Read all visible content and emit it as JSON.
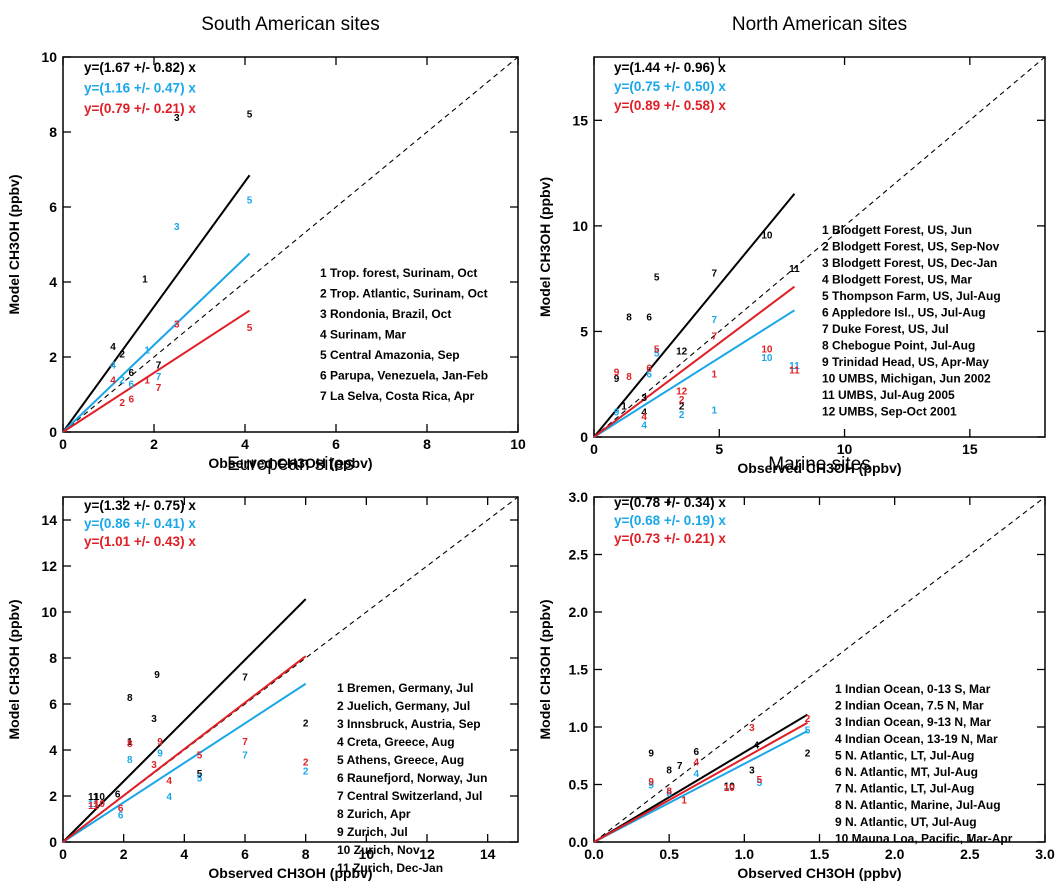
{
  "colors": {
    "black": "#000000",
    "blue": "#1aa7e8",
    "red": "#e01e25"
  },
  "chart_data": [
    {
      "type": "scatter",
      "title": "South American sites",
      "xlabel": "Observed CH3OH (ppbv)",
      "ylabel": "Model CH3OH (ppbv)",
      "xlim": [
        0,
        10
      ],
      "ylim": [
        0,
        10
      ],
      "xticks": [
        0,
        2,
        4,
        6,
        8,
        10
      ],
      "yticks": [
        0,
        2,
        4,
        6,
        8,
        10
      ],
      "tick_labels_x": [
        "0",
        "2",
        "4",
        "6",
        "8",
        "10"
      ],
      "tick_labels_y": [
        "0",
        "2",
        "4",
        "6",
        "8",
        "10"
      ],
      "one_to_one_line": true,
      "fits": [
        {
          "label": "y=(1.67 +/- 0.82) x",
          "slope": 1.67,
          "color": "black",
          "xend": 4.1
        },
        {
          "label": "y=(1.16 +/- 0.47) x",
          "slope": 1.16,
          "color": "blue",
          "xend": 4.1
        },
        {
          "label": "y=(0.79 +/- 0.21) x",
          "slope": 0.79,
          "color": "red",
          "xend": 4.1
        }
      ],
      "legend": [
        "1  Trop. forest, Surinam, Oct",
        "2  Trop. Atlantic, Surinam, Oct",
        "3  Rondonia, Brazil, Oct",
        "4  Surinam, Mar",
        "5  Central Amazonia, Sep",
        "6  Parupa, Venezuela, Jan-Feb",
        "7  La Selva, Costa Rica, Apr"
      ],
      "legend_position": "bottom-right",
      "series": [
        {
          "color": "black",
          "points": [
            {
              "x": 1.8,
              "y": 4.1,
              "label": "1"
            },
            {
              "x": 2.5,
              "y": 8.4,
              "label": "3"
            },
            {
              "x": 4.1,
              "y": 8.5,
              "label": "5"
            },
            {
              "x": 1.1,
              "y": 2.3,
              "label": "4"
            },
            {
              "x": 1.3,
              "y": 2.1,
              "label": "2"
            },
            {
              "x": 1.5,
              "y": 1.6,
              "label": "6"
            },
            {
              "x": 2.1,
              "y": 1.8,
              "label": "7"
            }
          ]
        },
        {
          "color": "blue",
          "points": [
            {
              "x": 2.5,
              "y": 5.5,
              "label": "3"
            },
            {
              "x": 4.1,
              "y": 6.2,
              "label": "5"
            },
            {
              "x": 1.85,
              "y": 2.2,
              "label": "1"
            },
            {
              "x": 1.1,
              "y": 1.8,
              "label": "4"
            },
            {
              "x": 1.3,
              "y": 1.4,
              "label": "2"
            },
            {
              "x": 1.5,
              "y": 1.3,
              "label": "6"
            },
            {
              "x": 2.1,
              "y": 1.5,
              "label": "7"
            }
          ]
        },
        {
          "color": "red",
          "points": [
            {
              "x": 2.5,
              "y": 2.9,
              "label": "3"
            },
            {
              "x": 4.1,
              "y": 2.8,
              "label": "5"
            },
            {
              "x": 1.1,
              "y": 1.4,
              "label": "4"
            },
            {
              "x": 1.3,
              "y": 0.8,
              "label": "2"
            },
            {
              "x": 1.5,
              "y": 0.9,
              "label": "6"
            },
            {
              "x": 1.85,
              "y": 1.4,
              "label": "1"
            },
            {
              "x": 2.1,
              "y": 1.2,
              "label": "7"
            }
          ]
        }
      ]
    },
    {
      "type": "scatter",
      "title": "North American sites",
      "xlabel": "Observed CH3OH (ppbv)",
      "ylabel": "Model CH3OH (ppbv)",
      "xlim": [
        0,
        18
      ],
      "ylim": [
        0,
        18
      ],
      "xticks": [
        0,
        5,
        10,
        15
      ],
      "yticks": [
        0,
        5,
        10,
        15
      ],
      "tick_labels_x": [
        "0",
        "5",
        "10",
        "15"
      ],
      "tick_labels_y": [
        "0",
        "5",
        "10",
        "15"
      ],
      "one_to_one_line": true,
      "fits": [
        {
          "label": "y=(1.44 +/- 0.96) x",
          "slope": 1.44,
          "color": "black",
          "xend": 8.0
        },
        {
          "label": "y=(0.75 +/- 0.50) x",
          "slope": 0.75,
          "color": "blue",
          "xend": 8.0
        },
        {
          "label": "y=(0.89 +/- 0.58) x",
          "slope": 0.89,
          "color": "red",
          "xend": 8.0
        }
      ],
      "legend": [
        "1  Blodgett Forest, US, Jun",
        "2  Blodgett Forest, US, Sep-Nov",
        "3  Blodgett Forest, US, Dec-Jan",
        "4  Blodgett Forest, US, Mar",
        "5  Thompson Farm, US, Jul-Aug",
        "6  Appledore Isl., US, Jul-Aug",
        "7  Duke Forest, US, Jul",
        "8  Chebogue Point, Jul-Aug",
        "9  Trinidad Head, US, Apr-May",
        "10  UMBS, Michigan, Jun 2002",
        "11  UMBS, Jul-Aug 2005",
        "12  UMBS, Sep-Oct 2001"
      ],
      "legend_position": "bottom-right",
      "series": [
        {
          "color": "black",
          "points": [
            {
              "x": 2.5,
              "y": 7.6,
              "label": "5"
            },
            {
              "x": 1.4,
              "y": 5.7,
              "label": "8"
            },
            {
              "x": 2.2,
              "y": 5.7,
              "label": "6"
            },
            {
              "x": 4.8,
              "y": 7.8,
              "label": "7"
            },
            {
              "x": 6.9,
              "y": 9.6,
              "label": "10"
            },
            {
              "x": 8.0,
              "y": 8.0,
              "label": "11"
            },
            {
              "x": 3.5,
              "y": 4.1,
              "label": "12"
            },
            {
              "x": 0.9,
              "y": 2.8,
              "label": "9"
            },
            {
              "x": 2.0,
              "y": 1.9,
              "label": "3"
            },
            {
              "x": 1.2,
              "y": 1.5,
              "label": "1"
            },
            {
              "x": 2.0,
              "y": 1.2,
              "label": "4"
            },
            {
              "x": 3.5,
              "y": 1.5,
              "label": "2"
            }
          ]
        },
        {
          "color": "blue",
          "points": [
            {
              "x": 4.8,
              "y": 5.6,
              "label": "7"
            },
            {
              "x": 2.5,
              "y": 4.0,
              "label": "5"
            },
            {
              "x": 2.2,
              "y": 3.0,
              "label": "6"
            },
            {
              "x": 6.9,
              "y": 3.8,
              "label": "10"
            },
            {
              "x": 8.0,
              "y": 3.4,
              "label": "11"
            },
            {
              "x": 0.9,
              "y": 1.2,
              "label": "9"
            },
            {
              "x": 2.0,
              "y": 0.6,
              "label": "4"
            },
            {
              "x": 3.5,
              "y": 1.1,
              "label": "2"
            },
            {
              "x": 4.8,
              "y": 1.3,
              "label": "1"
            }
          ]
        },
        {
          "color": "red",
          "points": [
            {
              "x": 2.5,
              "y": 4.2,
              "label": "5"
            },
            {
              "x": 2.2,
              "y": 3.3,
              "label": "6"
            },
            {
              "x": 4.8,
              "y": 4.8,
              "label": "7"
            },
            {
              "x": 6.9,
              "y": 4.2,
              "label": "10"
            },
            {
              "x": 8.0,
              "y": 3.2,
              "label": "11"
            },
            {
              "x": 0.9,
              "y": 3.1,
              "label": "9"
            },
            {
              "x": 1.4,
              "y": 2.9,
              "label": "8"
            },
            {
              "x": 3.5,
              "y": 2.2,
              "label": "12"
            },
            {
              "x": 3.5,
              "y": 1.8,
              "label": "2"
            },
            {
              "x": 4.8,
              "y": 3.0,
              "label": "1"
            },
            {
              "x": 2.0,
              "y": 1.0,
              "label": "4"
            }
          ]
        }
      ]
    },
    {
      "type": "scatter",
      "title": "European sites",
      "xlabel": "Observed CH3OH (ppbv)",
      "ylabel": "Model CH3OH (ppbv)",
      "xlim": [
        0,
        15
      ],
      "ylim": [
        0,
        15
      ],
      "xticks": [
        0,
        2,
        4,
        6,
        8,
        10,
        12,
        14
      ],
      "yticks": [
        0,
        2,
        4,
        6,
        8,
        10,
        12,
        14
      ],
      "tick_labels_x": [
        "0",
        "2",
        "4",
        "6",
        "8",
        "10",
        "12",
        "14"
      ],
      "tick_labels_y": [
        "0",
        "2",
        "4",
        "6",
        "8",
        "10",
        "12",
        "14"
      ],
      "one_to_one_line": true,
      "fits": [
        {
          "label": "y=(1.32 +/- 0.75) x",
          "slope": 1.32,
          "color": "black",
          "xend": 8.0
        },
        {
          "label": "y=(0.86 +/- 0.41) x",
          "slope": 0.86,
          "color": "blue",
          "xend": 8.0
        },
        {
          "label": "y=(1.01 +/- 0.43) x",
          "slope": 1.01,
          "color": "red",
          "xend": 8.0
        }
      ],
      "legend": [
        "1  Bremen, Germany, Jul",
        "2  Juelich, Germany, Jul",
        "3  Innsbruck, Austria, Sep",
        "4  Creta, Greece, Aug",
        "5  Athens, Greece, Aug",
        "6  Raunefjord, Norway, Jun",
        "7  Central Switzerland, Jul",
        "8  Zurich, Apr",
        "9  Zurich, Jul",
        "10  Zurich, Nov",
        "11  Zurich, Dec-Jan"
      ],
      "legend_position": "bottom-right",
      "series": [
        {
          "color": "black",
          "points": [
            {
              "x": 3.1,
              "y": 7.3,
              "label": "9"
            },
            {
              "x": 2.2,
              "y": 6.3,
              "label": "8"
            },
            {
              "x": 3.0,
              "y": 5.4,
              "label": "3"
            },
            {
              "x": 6.0,
              "y": 7.2,
              "label": "7"
            },
            {
              "x": 8.0,
              "y": 5.2,
              "label": "2"
            },
            {
              "x": 2.2,
              "y": 4.4,
              "label": "1"
            },
            {
              "x": 1.2,
              "y": 2.0,
              "label": "10"
            },
            {
              "x": 1.8,
              "y": 2.1,
              "label": "6"
            },
            {
              "x": 4.5,
              "y": 3.0,
              "label": "5"
            },
            {
              "x": 1.0,
              "y": 2.0,
              "label": "11"
            }
          ]
        },
        {
          "color": "blue",
          "points": [
            {
              "x": 2.2,
              "y": 3.6,
              "label": "8"
            },
            {
              "x": 3.2,
              "y": 3.9,
              "label": "9"
            },
            {
              "x": 3.5,
              "y": 2.0,
              "label": "4"
            },
            {
              "x": 4.5,
              "y": 2.8,
              "label": "5"
            },
            {
              "x": 6.0,
              "y": 3.8,
              "label": "7"
            },
            {
              "x": 8.0,
              "y": 3.1,
              "label": "2"
            },
            {
              "x": 1.9,
              "y": 1.2,
              "label": "6"
            },
            {
              "x": 1.0,
              "y": 1.7,
              "label": "11"
            }
          ]
        },
        {
          "color": "red",
          "points": [
            {
              "x": 2.2,
              "y": 4.3,
              "label": "8"
            },
            {
              "x": 3.2,
              "y": 4.4,
              "label": "9"
            },
            {
              "x": 3.0,
              "y": 3.4,
              "label": "3"
            },
            {
              "x": 3.5,
              "y": 2.7,
              "label": "4"
            },
            {
              "x": 4.5,
              "y": 3.8,
              "label": "5"
            },
            {
              "x": 6.0,
              "y": 4.4,
              "label": "7"
            },
            {
              "x": 8.0,
              "y": 3.5,
              "label": "2"
            },
            {
              "x": 1.2,
              "y": 1.7,
              "label": "10"
            },
            {
              "x": 1.9,
              "y": 1.5,
              "label": "6"
            },
            {
              "x": 1.0,
              "y": 1.6,
              "label": "11"
            }
          ]
        }
      ]
    },
    {
      "type": "scatter",
      "title": "Marine sites",
      "xlabel": "Observed CH3OH (ppbv)",
      "ylabel": "Model CH3OH (ppbv)",
      "xlim": [
        0,
        3
      ],
      "ylim": [
        0,
        3
      ],
      "xticks": [
        0,
        0.5,
        1,
        1.5,
        2,
        2.5,
        3
      ],
      "yticks": [
        0,
        0.5,
        1,
        1.5,
        2,
        2.5,
        3
      ],
      "tick_labels_x": [
        "0.0",
        "0.5",
        "1.0",
        "1.5",
        "2.0",
        "2.5",
        "3.0"
      ],
      "tick_labels_y": [
        "0.0",
        "0.5",
        "1.0",
        "1.5",
        "2.0",
        "2.5",
        "3.0"
      ],
      "one_to_one_line": true,
      "fits": [
        {
          "label": "y=(0.78 +/- 0.34) x",
          "slope": 0.78,
          "color": "black",
          "xend": 1.42
        },
        {
          "label": "y=(0.68 +/- 0.19) x",
          "slope": 0.68,
          "color": "blue",
          "xend": 1.42
        },
        {
          "label": "y=(0.73 +/- 0.21) x",
          "slope": 0.73,
          "color": "red",
          "xend": 1.42
        }
      ],
      "legend": [
        "1 Indian Ocean, 0-13 S, Mar",
        "2 Indian Ocean, 7.5 N, Mar",
        "3 Indian Ocean, 9-13 N, Mar",
        "4 Indian Ocean, 13-19 N, Mar",
        "5 N. Atlantic, LT, Jul-Aug",
        "6 N. Atlantic, MT, Jul-Aug",
        "7 N. Atlantic, LT, Jul-Aug",
        "8 N. Atlantic, Marine, Jul-Aug",
        "9 N. Atlantic, UT, Jul-Aug",
        "10 Mauna Loa, Pacific, Mar-Apr"
      ],
      "legend_position": "bottom-right",
      "series": [
        {
          "color": "black",
          "points": [
            {
              "x": 0.38,
              "y": 0.78,
              "label": "9"
            },
            {
              "x": 0.68,
              "y": 0.79,
              "label": "6"
            },
            {
              "x": 0.57,
              "y": 0.67,
              "label": "7"
            },
            {
              "x": 0.5,
              "y": 0.63,
              "label": "8"
            },
            {
              "x": 1.08,
              "y": 0.85,
              "label": "4"
            },
            {
              "x": 1.05,
              "y": 0.63,
              "label": "3"
            },
            {
              "x": 1.42,
              "y": 0.78,
              "label": "2"
            },
            {
              "x": 0.9,
              "y": 0.49,
              "label": "10"
            }
          ]
        },
        {
          "color": "blue",
          "points": [
            {
              "x": 0.68,
              "y": 0.6,
              "label": "4"
            },
            {
              "x": 0.38,
              "y": 0.5,
              "label": "9"
            },
            {
              "x": 0.5,
              "y": 0.43,
              "label": "8"
            },
            {
              "x": 1.1,
              "y": 0.52,
              "label": "5"
            },
            {
              "x": 1.42,
              "y": 0.98,
              "label": "5"
            }
          ]
        },
        {
          "color": "red",
          "points": [
            {
              "x": 1.05,
              "y": 1.0,
              "label": "3"
            },
            {
              "x": 1.42,
              "y": 1.08,
              "label": "2"
            },
            {
              "x": 0.68,
              "y": 0.7,
              "label": "4"
            },
            {
              "x": 0.38,
              "y": 0.53,
              "label": "9"
            },
            {
              "x": 0.5,
              "y": 0.45,
              "label": "8"
            },
            {
              "x": 0.6,
              "y": 0.37,
              "label": "1"
            },
            {
              "x": 1.1,
              "y": 0.55,
              "label": "5"
            },
            {
              "x": 0.9,
              "y": 0.48,
              "label": "10"
            }
          ]
        }
      ]
    }
  ]
}
